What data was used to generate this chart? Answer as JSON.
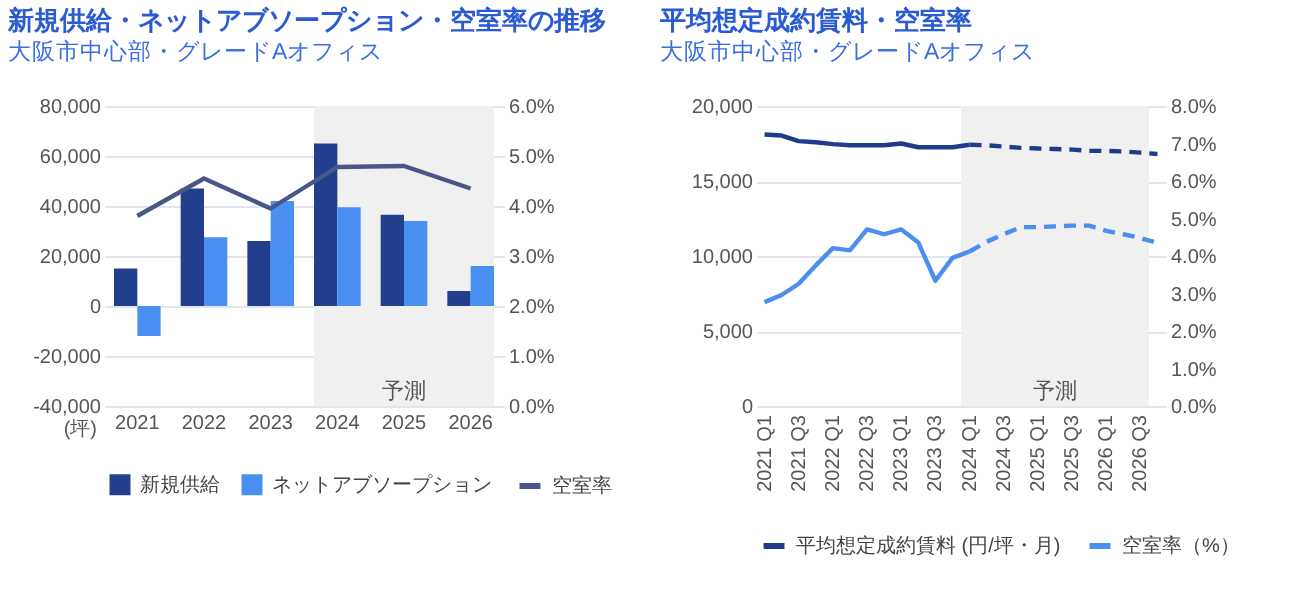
{
  "chart_data": [
    {
      "type": "bar",
      "title": "新規供給・ネットアブソープション・空室率の推移",
      "subtitle": "大阪市中心部・グレードAオフィス",
      "ylabel": "(坪)",
      "categories": [
        "2021",
        "2022",
        "2023",
        "2024",
        "2025",
        "2026"
      ],
      "series": [
        {
          "name": "新規供給",
          "color": "#223f8e",
          "values": [
            15000,
            47000,
            26000,
            65000,
            36500,
            6000
          ]
        },
        {
          "name": "ネットアブソープション",
          "color": "#4a90f2",
          "values": [
            -12000,
            27500,
            42000,
            39500,
            34000,
            16000
          ]
        },
        {
          "name": "空室率",
          "type": "line",
          "axis": "y2",
          "color": "#4a5688",
          "line_style": "solid",
          "values": [
            3.8,
            4.55,
            3.95,
            4.78,
            4.8,
            4.35
          ]
        }
      ],
      "ylim": [
        -40000,
        80000
      ],
      "yticks": [
        {
          "value": -40000,
          "label": "-40,000"
        },
        {
          "value": -20000,
          "label": "-20,000"
        },
        0,
        {
          "value": 20000,
          "label": "20,000"
        },
        {
          "value": 40000,
          "label": "40,000"
        },
        {
          "value": 60000,
          "label": "60,000"
        },
        {
          "value": 80000,
          "label": "80,000"
        }
      ],
      "y2lim": [
        0,
        6
      ],
      "y2ticks": [
        {
          "value": 0,
          "label": "0.0%"
        },
        {
          "value": 1,
          "label": "1.0%"
        },
        {
          "value": 2,
          "label": "2.0%"
        },
        {
          "value": 3,
          "label": "3.0%"
        },
        {
          "value": 4,
          "label": "4.0%"
        },
        {
          "value": 5,
          "label": "5.0%"
        },
        {
          "value": 6,
          "label": "6.0%"
        }
      ],
      "bands": [
        {
          "axis": "x",
          "from": "2024",
          "to": "2026",
          "label": "予測",
          "color": "#f0f0f0"
        }
      ],
      "grid": "y",
      "legend": "bottom"
    },
    {
      "type": "line",
      "title": "平均想定成約賃料・空室率",
      "subtitle": "大阪市中心部・グレードAオフィス",
      "categories": [
        "2021 Q1",
        null,
        "2021 Q3",
        null,
        "2022 Q1",
        null,
        "2022 Q3",
        null,
        "2023 Q1",
        null,
        "2023 Q3",
        null,
        "2024 Q1",
        null,
        "2024 Q3",
        null,
        "2025 Q1",
        null,
        "2025 Q3",
        null,
        "2026 Q1",
        null,
        "2026 Q3",
        null
      ],
      "series": [
        {
          "name": "平均想定成約賃料 (円/坪・月)",
          "color": "#1f3c8c",
          "line_style": "solid",
          "values": [
            18100,
            18030,
            17660,
            17580,
            17460,
            17380,
            17380,
            17380,
            17500,
            17250,
            17250,
            17250,
            17420,
            null,
            null,
            null,
            null,
            null,
            null,
            null,
            null,
            null,
            null,
            null
          ]
        },
        {
          "color": "#1f3c8c",
          "line_style": "dashed",
          "values": [
            null,
            null,
            null,
            null,
            null,
            null,
            null,
            null,
            null,
            null,
            null,
            null,
            17420,
            17380,
            17300,
            17210,
            17170,
            17130,
            17090,
            17010,
            17010,
            16970,
            16890,
            16800
          ]
        },
        {
          "name": "空室率（%）",
          "color": "#4a8ef0",
          "axis": "y2",
          "line_style": "solid",
          "values": [
            2.77,
            2.96,
            3.26,
            3.75,
            4.21,
            4.15,
            4.71,
            4.58,
            4.71,
            4.36,
            3.34,
            3.95,
            4.12,
            null,
            null,
            null,
            null,
            null,
            null,
            null,
            null,
            null,
            null,
            null
          ]
        },
        {
          "color": "#4a8ef0",
          "axis": "y2",
          "line_style": "dashed",
          "values": [
            null,
            null,
            null,
            null,
            null,
            null,
            null,
            null,
            null,
            null,
            null,
            null,
            4.12,
            4.38,
            4.58,
            4.77,
            4.77,
            4.79,
            4.81,
            4.81,
            4.67,
            4.58,
            4.48,
            4.35
          ]
        }
      ],
      "ylim": [
        0,
        20000
      ],
      "yticks": [
        0,
        {
          "value": 5000,
          "label": "5,000"
        },
        {
          "value": 10000,
          "label": "10,000"
        },
        {
          "value": 15000,
          "label": "15,000"
        },
        {
          "value": 20000,
          "label": "20,000"
        }
      ],
      "y2lim": [
        0,
        8
      ],
      "y2ticks": [
        {
          "value": 0,
          "label": "0.0%"
        },
        {
          "value": 1,
          "label": "1.0%"
        },
        {
          "value": 2,
          "label": "2.0%"
        },
        {
          "value": 3,
          "label": "3.0%"
        },
        {
          "value": 4,
          "label": "4.0%"
        },
        {
          "value": 5,
          "label": "5.0%"
        },
        {
          "value": 6,
          "label": "6.0%"
        },
        {
          "value": 7,
          "label": "7.0%"
        },
        {
          "value": 8,
          "label": "8.0%"
        }
      ],
      "bands": [
        {
          "axis": "x",
          "from": "2024 Q1",
          "to": "2026 Q3",
          "label": "予測",
          "color": "#f0f0f0"
        }
      ],
      "grid": "y",
      "legend": "bottom"
    }
  ]
}
